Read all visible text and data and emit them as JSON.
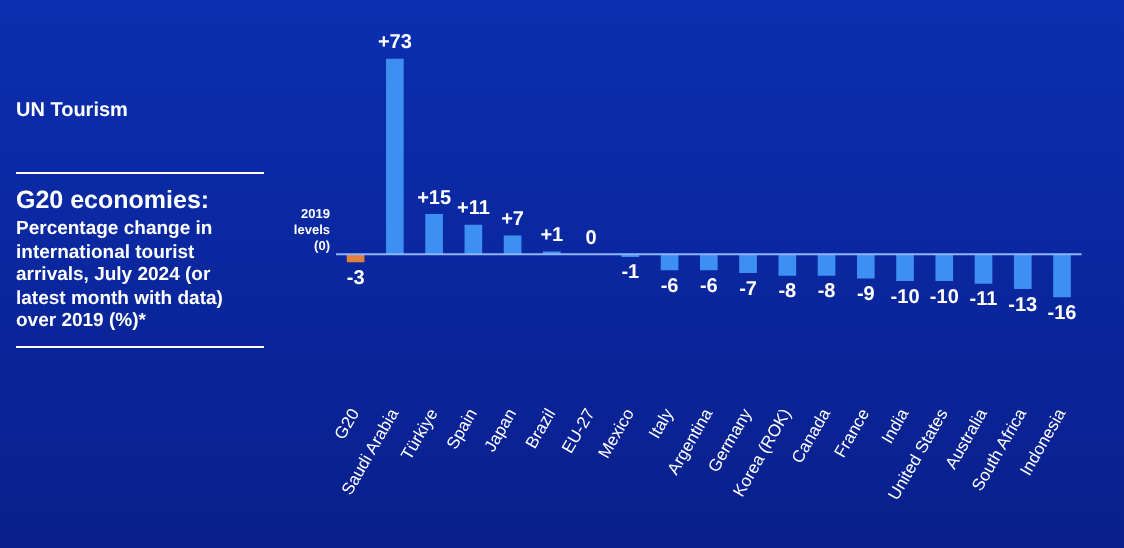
{
  "chart_data": {
    "type": "bar",
    "title": "G20 economies:",
    "subtitle": "Percentage change in international tourist arrivals, July 2024 (or latest month with data) over 2019 (%)*",
    "annotations": [
      "UN Tourism"
    ],
    "categories": [
      "G20",
      "Saudi Arabia",
      "Türkiye",
      "Spain",
      "Japan",
      "Brazil",
      "EU-27",
      "Mexico",
      "Italy",
      "Argentina",
      "Germany",
      "Korea (ROK)",
      "Canada",
      "France",
      "India",
      "United States",
      "Australia",
      "South Africa",
      "Indonesia"
    ],
    "values": [
      -3,
      73,
      15,
      11,
      7,
      1,
      0,
      -1,
      -6,
      -6,
      -7,
      -8,
      -8,
      -9,
      -10,
      -10,
      -11,
      -13,
      -16
    ],
    "value_labels": [
      "-3",
      "+73",
      "+15",
      "+11",
      "+7",
      "+1",
      "0",
      "-1",
      "-6",
      "-6",
      "-7",
      "-8",
      "-8",
      "-9",
      "-10",
      "-10",
      "-11",
      "-13",
      "-16"
    ],
    "colors": [
      "#e0803a",
      "#3d8ff2",
      "#3d8ff2",
      "#3d8ff2",
      "#3d8ff2",
      "#3d8ff2",
      "#3d8ff2",
      "#3d8ff2",
      "#3d8ff2",
      "#3d8ff2",
      "#3d8ff2",
      "#3d8ff2",
      "#3d8ff2",
      "#3d8ff2",
      "#3d8ff2",
      "#3d8ff2",
      "#3d8ff2",
      "#3d8ff2",
      "#3d8ff2"
    ],
    "ref_lines": [
      {
        "axis": "y",
        "value": 0,
        "label": "2019 levels (0)",
        "color": "#8fb4ff"
      }
    ],
    "legend": false,
    "grid": false
  }
}
